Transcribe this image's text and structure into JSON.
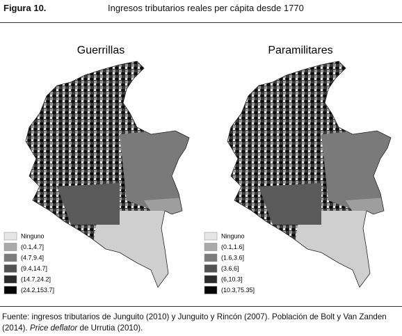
{
  "header": {
    "label": "Figura 10.",
    "title": "Ingresos tributarios reales per cápita desde 1770"
  },
  "maps": [
    {
      "title": "Guerrillas",
      "legend": [
        {
          "label": "Ninguno",
          "color": "#e6e6e6"
        },
        {
          "label": "(0.1,4.7]",
          "color": "#a9a9a9"
        },
        {
          "label": "(4.7,9.4]",
          "color": "#7c7c7c"
        },
        {
          "label": "(9.4,14.7]",
          "color": "#525252"
        },
        {
          "label": "(14.7,24.2]",
          "color": "#2b2b2b"
        },
        {
          "label": "(24.2,153.7]",
          "color": "#050505"
        }
      ]
    },
    {
      "title": "Paramilitares",
      "legend": [
        {
          "label": "Ninguno",
          "color": "#e6e6e6"
        },
        {
          "label": "(0.1,1.6]",
          "color": "#a9a9a9"
        },
        {
          "label": "(1.6,3.6]",
          "color": "#7c7c7c"
        },
        {
          "label": "(3.6,6]",
          "color": "#525252"
        },
        {
          "label": "(6,10.3]",
          "color": "#2b2b2b"
        },
        {
          "label": "(10.3,75.35]",
          "color": "#050505"
        }
      ]
    }
  ],
  "footer": {
    "text_1": "Fuente: ingresos tributarios de Junguito (2010) y Junguito y Rincón (2007). Población de Bolt y Van Zanden (2014).",
    "text_2": "Price deflator",
    "text_3": "de Urrutia (2010)."
  }
}
